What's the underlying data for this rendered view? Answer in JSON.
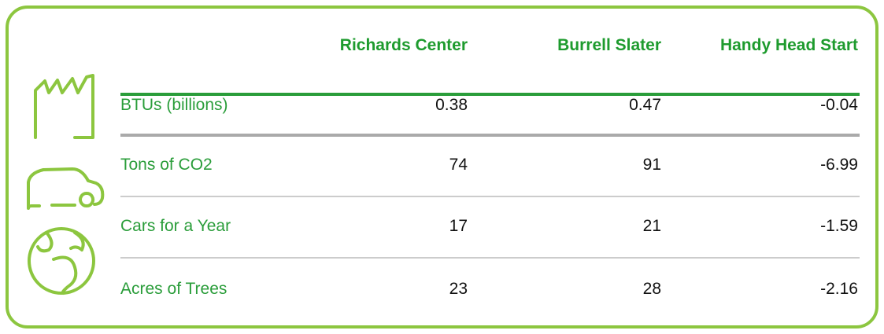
{
  "table": {
    "headers": [
      "Richards Center",
      "Burrell Slater",
      "Handy Head Start"
    ],
    "rows": [
      [
        "BTUs (billions)",
        0.38,
        0.47,
        -0.04
      ],
      [
        "Tons of CO2",
        74,
        91,
        -6.99
      ],
      [
        "Cars for a Year",
        17,
        21,
        -1.59
      ],
      [
        "Acres of Trees",
        23,
        28,
        -2.16
      ]
    ]
  }
}
